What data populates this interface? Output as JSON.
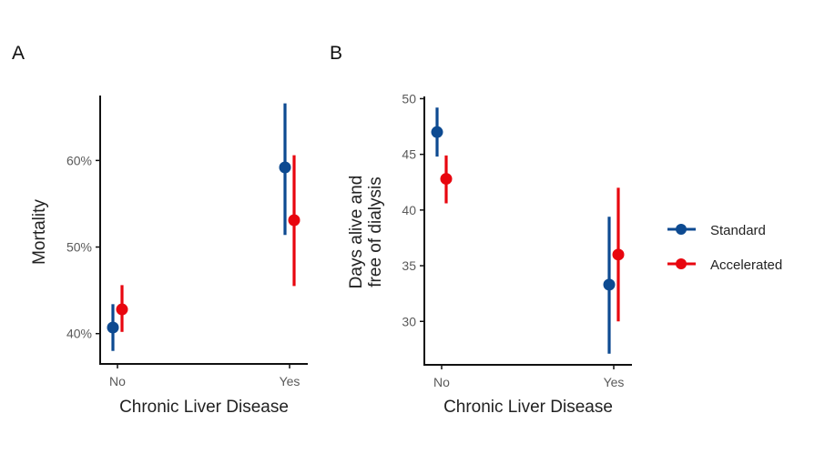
{
  "chart_data": [
    {
      "type": "pointrange",
      "panel_label": "A",
      "title": "",
      "xlabel": "Chronic Liver Disease",
      "ylabel": "Mortality",
      "categories": [
        "No",
        "Yes"
      ],
      "yticks": [
        40,
        50,
        60
      ],
      "ytick_labels": [
        "40%",
        "50%",
        "60%"
      ],
      "ylim": [
        36.5,
        67.5
      ],
      "grid": false,
      "series": [
        {
          "name": "Standard",
          "color": "#0d4a91",
          "values": [
            40.7,
            59.2
          ],
          "lower": [
            38.0,
            51.4
          ],
          "upper": [
            43.4,
            66.6
          ]
        },
        {
          "name": "Accelerated",
          "color": "#e8060f",
          "values": [
            42.8,
            53.1
          ],
          "lower": [
            40.2,
            45.5
          ],
          "upper": [
            45.6,
            60.6
          ]
        }
      ]
    },
    {
      "type": "pointrange",
      "panel_label": "B",
      "title": "",
      "xlabel": "Chronic Liver Disease",
      "ylabel": [
        "Days alive and",
        "free of dialysis"
      ],
      "categories": [
        "No",
        "Yes"
      ],
      "yticks": [
        30,
        35,
        40,
        45,
        50
      ],
      "ytick_labels": [
        "30",
        "35",
        "40",
        "45",
        "50"
      ],
      "ylim": [
        26.1,
        50.2
      ],
      "grid": false,
      "series": [
        {
          "name": "Standard",
          "color": "#0d4a91",
          "values": [
            47.0,
            33.3
          ],
          "lower": [
            44.8,
            27.1
          ],
          "upper": [
            49.2,
            39.4
          ]
        },
        {
          "name": "Accelerated",
          "color": "#e8060f",
          "values": [
            42.8,
            36.0
          ],
          "lower": [
            40.6,
            30.0
          ],
          "upper": [
            44.9,
            42.0
          ]
        }
      ]
    }
  ],
  "legend": {
    "placement": "right",
    "items": [
      {
        "label": "Standard",
        "color": "#0d4a91"
      },
      {
        "label": "Accelerated",
        "color": "#e8060f"
      }
    ]
  }
}
